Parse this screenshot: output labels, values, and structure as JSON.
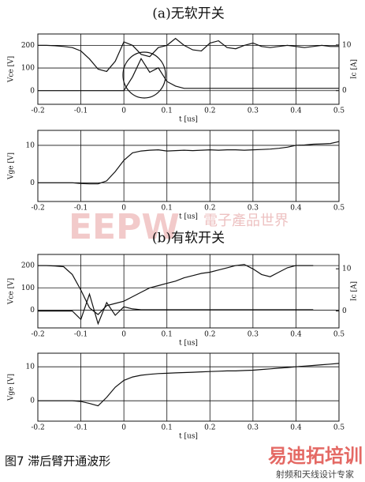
{
  "chart_data": [
    {
      "type": "line",
      "title": "(a)无软开关",
      "xlabel": "t [us]",
      "ylabel": "Vce [V]",
      "y2label": "Ic [A]",
      "x": [
        -0.2,
        -0.18,
        -0.16,
        -0.14,
        -0.12,
        -0.1,
        -0.08,
        -0.06,
        -0.04,
        -0.02,
        0,
        0.02,
        0.04,
        0.06,
        0.08,
        0.1,
        0.12,
        0.14,
        0.16,
        0.18,
        0.2,
        0.22,
        0.24,
        0.26,
        0.28,
        0.3,
        0.32,
        0.34,
        0.36,
        0.38,
        0.4,
        0.42,
        0.44,
        0.46,
        0.48,
        0.5
      ],
      "series": [
        {
          "color": "#111111",
          "values": [
            200,
            200,
            198,
            195,
            190,
            175,
            140,
            95,
            85,
            130,
            215,
            200,
            160,
            150,
            190,
            200,
            230,
            200,
            180,
            175,
            210,
            220,
            190,
            185,
            200,
            210,
            195,
            190,
            195,
            200,
            195,
            190,
            195,
            200,
            195,
            195
          ]
        },
        {
          "color": "#111111",
          "axis": "y2",
          "values": [
            0,
            0,
            0,
            0,
            0,
            0,
            0,
            0,
            0,
            0,
            0,
            3,
            7,
            4,
            5,
            2,
            1,
            0.5,
            0.5,
            0.5,
            0.5,
            0.5,
            0.5,
            0.5,
            0.5,
            0.5,
            0.5,
            0.5,
            0.5,
            0.5,
            0.5,
            0.5,
            0.5,
            0.5,
            0.5,
            0.5
          ]
        }
      ],
      "xlim": [
        -0.2,
        0.5
      ],
      "xticks": [
        -0.2,
        -0.1,
        0,
        0.1,
        0.2,
        0.3,
        0.4,
        0.5
      ],
      "ylim": [
        -60,
        250
      ],
      "yticks": [
        0,
        100,
        200
      ],
      "y2lim": [
        -3,
        12.4
      ],
      "y2ticks": [
        0,
        10
      ],
      "grid": true
    },
    {
      "type": "line",
      "xlabel": "t [us]",
      "ylabel": "Vge [V]",
      "x": [
        -0.2,
        -0.18,
        -0.16,
        -0.14,
        -0.12,
        -0.1,
        -0.08,
        -0.06,
        -0.04,
        -0.02,
        0,
        0.02,
        0.04,
        0.06,
        0.08,
        0.1,
        0.12,
        0.14,
        0.16,
        0.18,
        0.2,
        0.22,
        0.24,
        0.26,
        0.28,
        0.3,
        0.32,
        0.34,
        0.36,
        0.38,
        0.4,
        0.42,
        0.44,
        0.46,
        0.48,
        0.5
      ],
      "series": [
        {
          "color": "#111111",
          "values": [
            0,
            0,
            0,
            0,
            0,
            -0.2,
            -0.3,
            -0.3,
            0.5,
            3,
            6,
            8,
            8.5,
            8.7,
            8.8,
            8.5,
            8.6,
            8.7,
            8.6,
            8.7,
            8.8,
            8.7,
            8.8,
            8.8,
            8.7,
            8.8,
            8.9,
            9,
            9.2,
            9.5,
            10,
            10.1,
            10.3,
            10.4,
            10.5,
            11
          ]
        }
      ],
      "xlim": [
        -0.2,
        0.5
      ],
      "xticks": [
        -0.2,
        -0.1,
        0,
        0.1,
        0.2,
        0.3,
        0.4,
        0.5
      ],
      "ylim": [
        -5,
        14
      ],
      "yticks": [
        0,
        10
      ],
      "grid": true
    },
    {
      "type": "line",
      "title": "(b)有软开关",
      "xlabel": "t [us]",
      "ylabel": "Vce [V]",
      "y2label": "Ic [A]",
      "x": [
        -0.2,
        -0.18,
        -0.16,
        -0.14,
        -0.12,
        -0.1,
        -0.08,
        -0.06,
        -0.04,
        -0.02,
        0,
        0.02,
        0.04,
        0.06,
        0.08,
        0.1,
        0.12,
        0.14,
        0.16,
        0.18,
        0.2,
        0.22,
        0.24,
        0.26,
        0.28,
        0.3,
        0.32,
        0.34,
        0.36,
        0.38,
        0.4,
        0.42,
        0.44,
        0.46,
        0.48,
        0.5
      ],
      "series": [
        {
          "color": "#111111",
          "values": [
            200,
            200,
            198,
            195,
            160,
            90,
            10,
            -20,
            20,
            30,
            40,
            60,
            80,
            100,
            110,
            120,
            130,
            145,
            155,
            165,
            170,
            180,
            190,
            200,
            205,
            185,
            160,
            150,
            170,
            190,
            200,
            200,
            200,
            null,
            null,
            null
          ]
        },
        {
          "color": "#111111",
          "axis": "y2",
          "values": [
            0,
            0,
            0,
            0,
            0,
            -2,
            4,
            -3,
            2,
            -1,
            1,
            0.5,
            0.3,
            0.3,
            0.3,
            0.3,
            0.3,
            0.3,
            0.3,
            0.3,
            0.3,
            0.3,
            0.3,
            0.3,
            0.3,
            0.3,
            0.3,
            0.3,
            0.3,
            0.3,
            0.3,
            0.3,
            0.3,
            null,
            null,
            null
          ]
        }
      ],
      "xlim": [
        -0.2,
        0.5
      ],
      "xticks": [
        -0.2,
        -0.1,
        0,
        0.1,
        0.2,
        0.3,
        0.4,
        0.5
      ],
      "ylim": [
        -80,
        250
      ],
      "yticks": [
        0,
        100,
        200
      ],
      "y2lim": [
        -4,
        13.4
      ],
      "y2ticks": [
        0,
        10
      ],
      "grid": true
    },
    {
      "type": "line",
      "xlabel": "t [us]",
      "ylabel": "Vge [V]",
      "x": [
        -0.2,
        -0.18,
        -0.16,
        -0.14,
        -0.12,
        -0.1,
        -0.08,
        -0.06,
        -0.04,
        -0.02,
        0,
        0.02,
        0.04,
        0.06,
        0.08,
        0.1,
        0.12,
        0.14,
        0.16,
        0.18,
        0.2,
        0.22,
        0.24,
        0.26,
        0.28,
        0.3,
        0.32,
        0.34,
        0.36,
        0.38,
        0.4,
        0.42,
        0.44,
        0.46,
        0.48,
        0.5
      ],
      "series": [
        {
          "color": "#111111",
          "values": [
            0,
            0,
            0,
            0,
            0,
            -0.2,
            -0.8,
            -1.5,
            1,
            4,
            6,
            7,
            7.5,
            7.8,
            8,
            8.1,
            8.2,
            8.3,
            8.4,
            8.5,
            8.6,
            8.7,
            8.8,
            8.8,
            8.9,
            9,
            9.2,
            9.4,
            9.6,
            9.8,
            10,
            10.2,
            10.4,
            10.6,
            10.8,
            11
          ]
        }
      ],
      "xlim": [
        -0.2,
        0.5
      ],
      "xticks": [
        -0.2,
        -0.1,
        0,
        0.1,
        0.2,
        0.3,
        0.4,
        0.5
      ],
      "ylim": [
        -6,
        14
      ],
      "yticks": [
        0,
        10
      ],
      "grid": true
    }
  ],
  "caption": "图7  滞后臂开通波形",
  "watermarks": [
    "EEPW",
    "電子產品世界",
    "易迪拓培训",
    "射频和天线设计专家"
  ]
}
